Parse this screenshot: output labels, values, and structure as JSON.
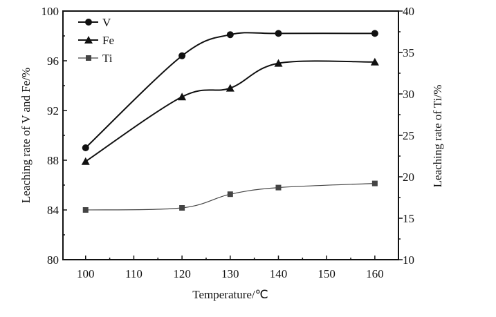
{
  "chart_data": {
    "type": "line",
    "title": "",
    "xlabel": "Temperature/℃",
    "ylabel": "Leaching rate of V and Fe/%",
    "y2label": "Leaching rate of Ti/%",
    "xlim": [
      95.3,
      164.9
    ],
    "ylim": [
      80,
      100
    ],
    "y2lim": [
      10,
      40
    ],
    "xticks": [
      100,
      110,
      120,
      130,
      140,
      150,
      160
    ],
    "yticks": [
      80,
      84,
      88,
      92,
      96,
      100
    ],
    "y2ticks": [
      10,
      15,
      20,
      25,
      30,
      35,
      40
    ],
    "grid": false,
    "legend_position": "top-left",
    "series": [
      {
        "name": "V",
        "axis": "left",
        "marker": "circle",
        "color": "#111111",
        "x": [
          100,
          120,
          130,
          140,
          160
        ],
        "y": [
          89.0,
          96.4,
          98.1,
          98.2,
          98.2
        ]
      },
      {
        "name": "Fe",
        "axis": "left",
        "marker": "triangle",
        "color": "#111111",
        "x": [
          100,
          120,
          130,
          140,
          160
        ],
        "y": [
          87.9,
          93.1,
          93.8,
          95.8,
          95.9
        ]
      },
      {
        "name": "Ti",
        "axis": "right",
        "marker": "square",
        "color": "#444444",
        "x": [
          100,
          120,
          130,
          140,
          160
        ],
        "y": [
          16.0,
          16.25,
          17.9,
          18.7,
          19.2
        ]
      }
    ]
  }
}
